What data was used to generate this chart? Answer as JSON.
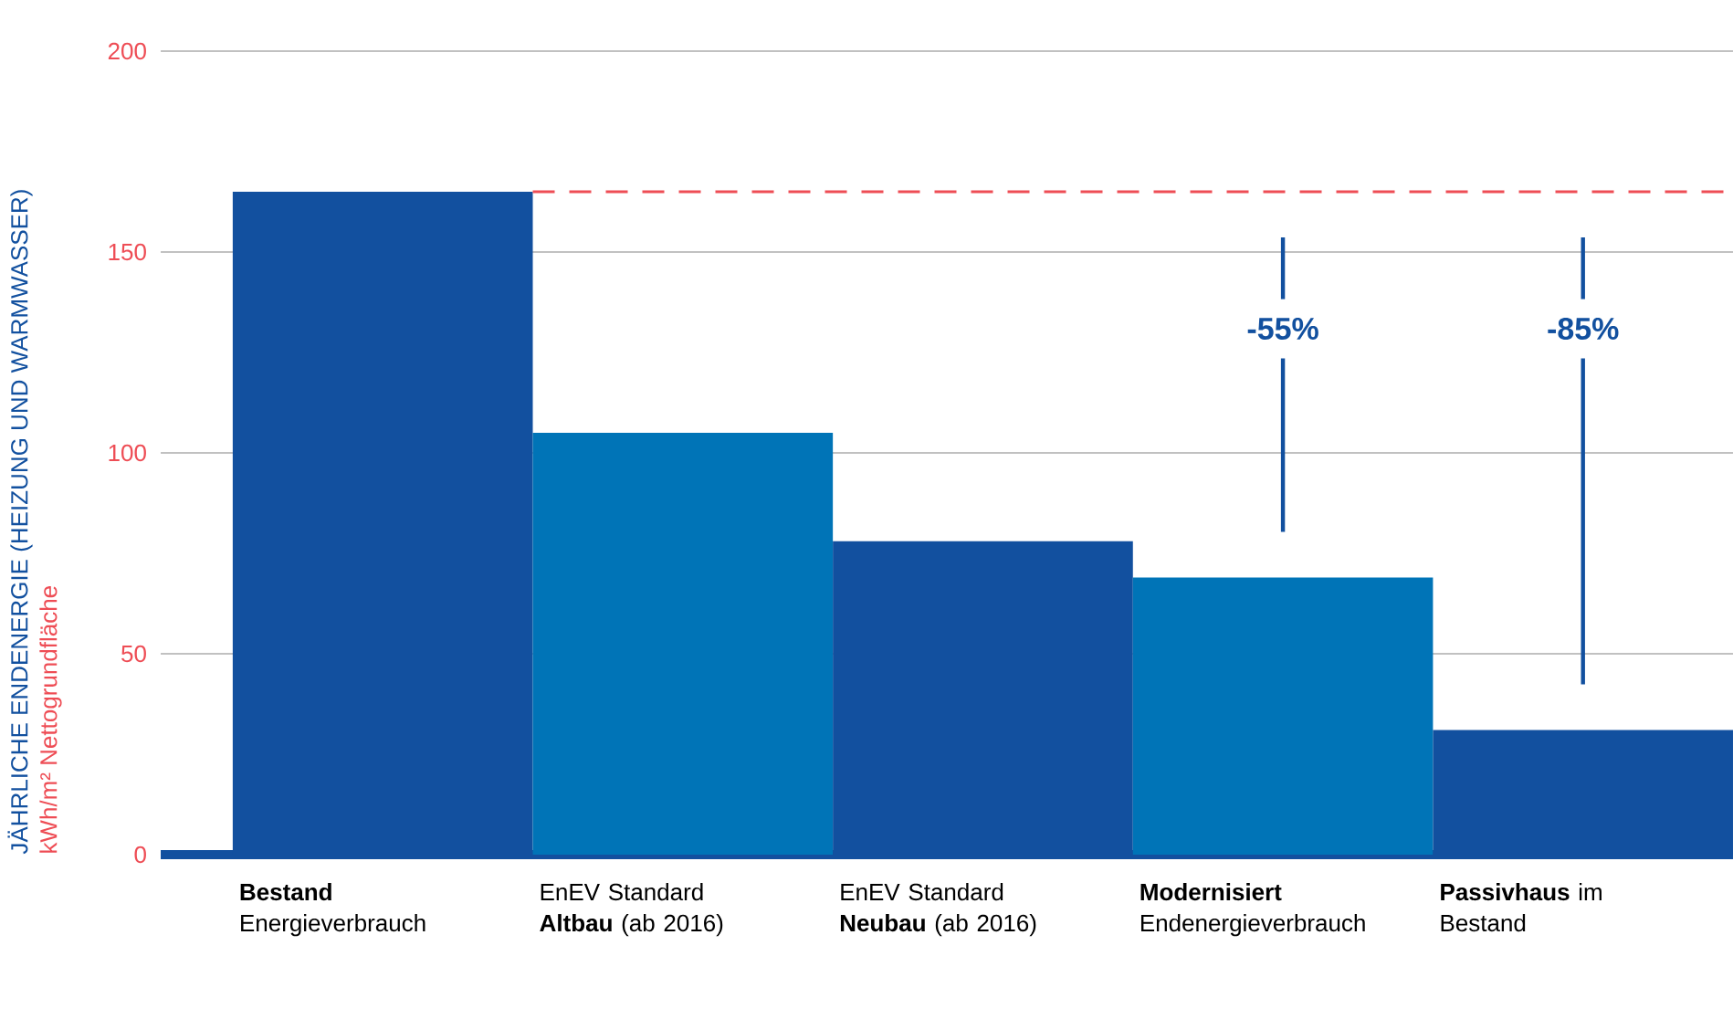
{
  "chart_data": {
    "type": "bar",
    "ylabel": "JÄHRLICHE ENDENERGIE (HEIZUNG UND WARMWASSER)",
    "categories": [
      "**Bestand** Energieverbrauch",
      "EnEV Standard **Altbau** (ab 2016)",
      "EnEV Standard **Neubau** (ab 2016)",
      "**Modernisiert** Endenergieverbrauch",
      "**Passivhaus** im Bestand"
    ],
    "values": [
      165,
      105,
      78,
      69,
      31
    ],
    "colors": [
      "#12509f",
      "#0074b7",
      "#12509f",
      "#0074b7",
      "#12509f"
    ],
    "ylim": [
      0,
      200
    ],
    "yticks": [
      0,
      50,
      100,
      150,
      200
    ],
    "grid": "y",
    "ref_lines": [
      {
        "axis": "y",
        "value": 165,
        "color": "#ee4d55",
        "line_style": "dashed"
      }
    ],
    "annotations": [
      "kWh/m² Nettogrundfläche",
      "-55%",
      "-85%"
    ]
  }
}
